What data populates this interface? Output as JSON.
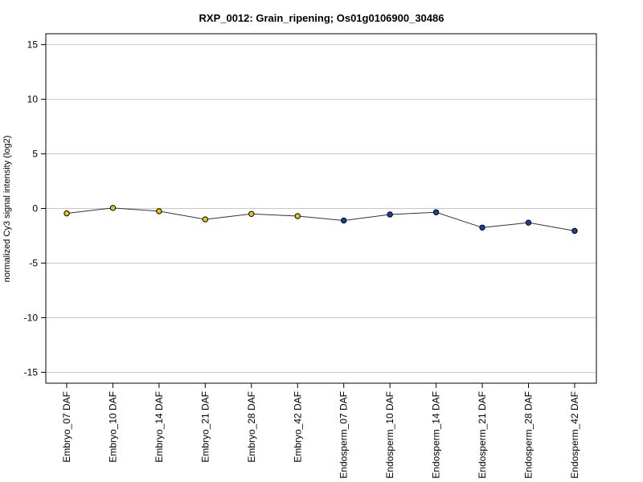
{
  "chart_data": {
    "type": "line",
    "title": "RXP_0012: Grain_ripening; Os01g0106900_30486",
    "xlabel": "",
    "ylabel": "normalized Cy3 signal intensity (log2)",
    "ylim": [
      -16,
      16
    ],
    "yticks": [
      -15,
      -10,
      -5,
      0,
      5,
      10,
      15
    ],
    "grid": "horizontal",
    "categories": [
      "Embryo_07 DAF",
      "Embryo_10 DAF",
      "Embryo_14 DAF",
      "Embryo_21 DAF",
      "Embryo_28 DAF",
      "Embryo_42 DAF",
      "Endosperm_07 DAF",
      "Endosperm_10 DAF",
      "Endosperm_14 DAF",
      "Endosperm_21 DAF",
      "Endosperm_28 DAF",
      "Endosperm_42 DAF"
    ],
    "values": [
      -0.45,
      0.05,
      -0.25,
      -1.0,
      -0.5,
      -0.7,
      -1.1,
      -0.55,
      -0.35,
      -1.75,
      -1.3,
      -2.05
    ],
    "error": [
      0.1,
      0.15,
      0.1,
      0.1,
      0.05,
      0.05,
      0.2,
      0.15,
      0.25,
      0.05,
      0.05,
      0.05
    ],
    "point_colors": [
      "#e6c619",
      "#e6c619",
      "#e6c619",
      "#e6c619",
      "#e6c619",
      "#e6c619",
      "#1f3fa8",
      "#1f3fa8",
      "#1f3fa8",
      "#1f3fa8",
      "#1f3fa8",
      "#1f3fa8"
    ],
    "line_color": "#333333",
    "grid_color": "#c8c8c8"
  }
}
